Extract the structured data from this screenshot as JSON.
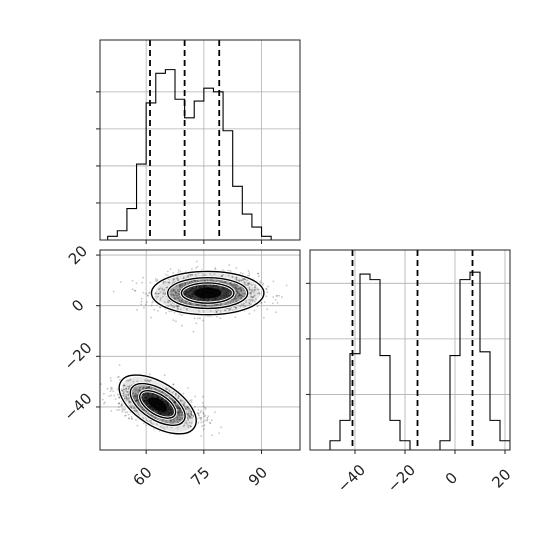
{
  "chart_data": [
    {
      "id": "hist-x",
      "type": "histogram",
      "xlim": [
        48,
        100
      ],
      "ylim": [
        0,
        1.08
      ],
      "grid": true,
      "bin_edges": [
        50,
        52.5,
        55,
        57.5,
        60,
        62.5,
        65,
        67.5,
        70,
        72.5,
        75,
        77.5,
        80,
        82.5,
        85,
        87.5,
        90,
        92.5,
        95
      ],
      "counts": [
        0.02,
        0.05,
        0.17,
        0.41,
        0.74,
        0.9,
        0.92,
        0.76,
        0.66,
        0.75,
        0.82,
        0.8,
        0.59,
        0.29,
        0.14,
        0.07,
        0.02,
        0.0
      ],
      "quantiles": [
        61,
        70,
        79
      ],
      "tick_positions": [
        60,
        75,
        90
      ],
      "tick_labels": []
    },
    {
      "id": "scatter-xy",
      "type": "scatter",
      "xlim": [
        48,
        100
      ],
      "ylim": [
        -57,
        22
      ],
      "grid": true,
      "clusters": [
        {
          "x_center": 76,
          "y_center": 5,
          "x_std": 6.5,
          "y_std": 3.8
        },
        {
          "x_center": 63,
          "y_center": -39,
          "x_std": 5.0,
          "y_std": 3.8,
          "correlation": -0.45
        }
      ],
      "x_ticks": [
        "60",
        "75",
        "90"
      ],
      "y_ticks": [
        "20",
        "0",
        "−20",
        "−40"
      ]
    },
    {
      "id": "hist-y",
      "type": "histogram",
      "xlim": [
        -58,
        22
      ],
      "ylim": [
        0,
        1.08
      ],
      "grid": true,
      "bin_edges": [
        -58,
        -54,
        -50,
        -46,
        -42,
        -38,
        -34,
        -30,
        -26,
        -22,
        -18,
        -14,
        -10,
        -6,
        -2,
        2,
        6,
        10,
        14,
        18,
        22
      ],
      "counts": [
        0.0,
        0.0,
        0.05,
        0.16,
        0.52,
        0.95,
        0.92,
        0.51,
        0.16,
        0.05,
        0.0,
        0.0,
        0.0,
        0.05,
        0.51,
        0.92,
        0.96,
        0.53,
        0.16,
        0.05
      ],
      "quantiles": [
        -41,
        -15,
        7
      ],
      "x_ticks": [
        "−40",
        "−20",
        "0",
        "20"
      ]
    }
  ]
}
